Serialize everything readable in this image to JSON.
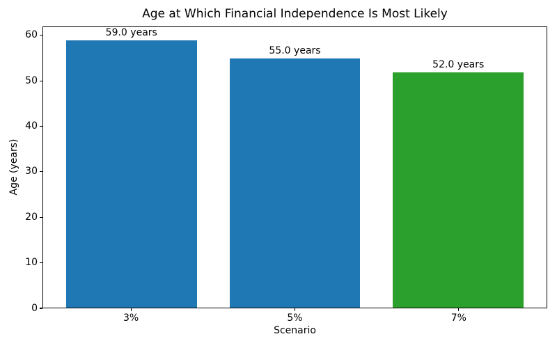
{
  "chart_data": {
    "type": "bar",
    "title": "Age at Which Financial Independence Is Most Likely",
    "xlabel": "Scenario",
    "ylabel": "Age (years)",
    "categories": [
      "3%",
      "5%",
      "7%"
    ],
    "values": [
      59.0,
      55.0,
      52.0
    ],
    "bar_labels": [
      "59.0 years",
      "55.0 years",
      "52.0 years"
    ],
    "colors": [
      "#1f77b4",
      "#1f77b4",
      "#2ca02c"
    ],
    "yticks": [
      0,
      10,
      20,
      30,
      40,
      50,
      60
    ],
    "ylim": [
      0,
      61.95
    ],
    "grid": false,
    "legend": null
  }
}
